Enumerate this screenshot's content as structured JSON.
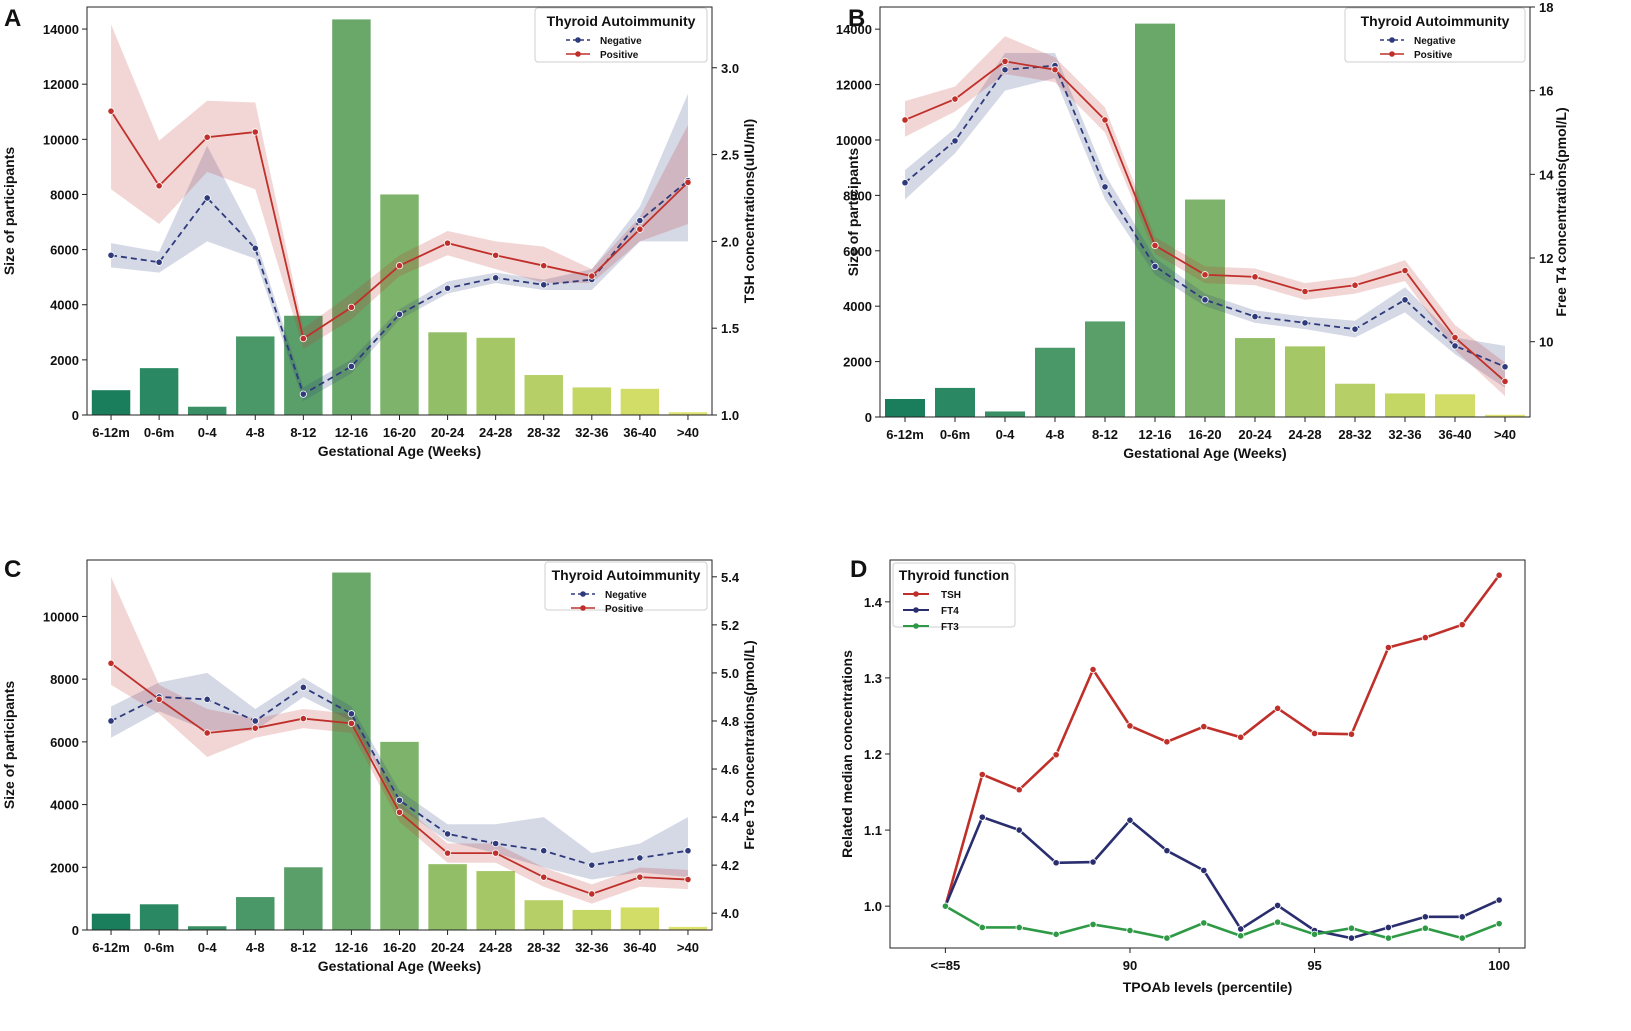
{
  "chart_data": [
    {
      "panel": "A",
      "type": "bar+line",
      "xlabel": "Gestational Age (Weeks)",
      "ylabel_left": "Size of participants",
      "ylabel_right": "TSH concentrations(uIU/ml)",
      "ylim_left": [
        0,
        14800
      ],
      "yticks_left": [
        0,
        2000,
        4000,
        6000,
        8000,
        10000,
        12000,
        14000
      ],
      "ylim_right": [
        1.0,
        3.35
      ],
      "yticks_right": [
        "1.0",
        "1.5",
        "2.0",
        "2.5",
        "3.0"
      ],
      "yticks_right_values": [
        1.0,
        1.5,
        2.0,
        2.5,
        3.0
      ],
      "categories": [
        "6-12m",
        "0-6m",
        "0-4",
        "4-8",
        "8-12",
        "12-16",
        "16-20",
        "20-24",
        "24-28",
        "28-32",
        "32-36",
        "36-40",
        ">40"
      ],
      "bars": [
        900,
        1700,
        300,
        2850,
        3600,
        14350,
        8000,
        3000,
        2800,
        1450,
        1000,
        950,
        100
      ],
      "legend_title": "Thyroid Autoimmunity",
      "series": [
        {
          "name": "Negative",
          "style": "dashed",
          "color": "#2e3a7c",
          "values": [
            1.92,
            1.88,
            2.25,
            1.96,
            1.12,
            1.28,
            1.58,
            1.73,
            1.79,
            1.75,
            1.78,
            2.12,
            2.35
          ],
          "ci_low": [
            1.85,
            1.82,
            2.0,
            1.9,
            1.08,
            1.24,
            1.55,
            1.7,
            1.76,
            1.72,
            1.72,
            2.0,
            2.0
          ],
          "ci_high": [
            1.99,
            1.94,
            2.55,
            2.02,
            1.16,
            1.32,
            1.61,
            1.77,
            1.82,
            1.78,
            1.84,
            2.2,
            2.85
          ]
        },
        {
          "name": "Positive",
          "style": "solid",
          "color": "#c0302b",
          "values": [
            2.75,
            2.32,
            2.6,
            2.63,
            1.44,
            1.62,
            1.86,
            1.99,
            1.92,
            1.86,
            1.8,
            2.07,
            2.34
          ],
          "ci_low": [
            2.3,
            2.1,
            2.4,
            2.3,
            1.38,
            1.55,
            1.8,
            1.92,
            1.84,
            1.76,
            1.76,
            2.0,
            2.1
          ],
          "ci_high": [
            3.25,
            2.58,
            2.81,
            2.8,
            1.5,
            1.7,
            1.92,
            2.06,
            2.0,
            1.97,
            1.84,
            2.14,
            2.67
          ]
        }
      ]
    },
    {
      "panel": "B",
      "type": "bar+line",
      "xlabel": "Gestational Age (Weeks)",
      "ylabel_left": "Size of participants",
      "ylabel_right": "Free T4 concentrations(pmol/L)",
      "ylim_left": [
        0,
        14800
      ],
      "yticks_left": [
        0,
        2000,
        4000,
        6000,
        8000,
        10000,
        12000,
        14000
      ],
      "ylim_right": [
        8.2,
        18.0
      ],
      "yticks_right": [
        "10",
        "12",
        "14",
        "16",
        "18"
      ],
      "yticks_right_values": [
        10,
        12,
        14,
        16,
        18
      ],
      "categories": [
        "6-12m",
        "0-6m",
        "0-4",
        "4-8",
        "8-12",
        "12-16",
        "16-20",
        "20-24",
        "24-28",
        "28-32",
        "32-36",
        "36-40",
        ">40"
      ],
      "bars": [
        650,
        1050,
        200,
        2500,
        3450,
        14200,
        7850,
        2850,
        2550,
        1200,
        850,
        820,
        80
      ],
      "legend_title": "Thyroid Autoimmunity",
      "series": [
        {
          "name": "Negative",
          "style": "dashed",
          "color": "#2e3a7c",
          "values": [
            13.8,
            14.8,
            16.5,
            16.6,
            13.7,
            11.8,
            11.0,
            10.6,
            10.45,
            10.3,
            11.0,
            9.9,
            9.4
          ],
          "ci_low": [
            13.4,
            14.5,
            16.0,
            16.3,
            13.4,
            11.6,
            10.85,
            10.45,
            10.3,
            10.1,
            10.7,
            9.7,
            8.9
          ],
          "ci_high": [
            14.1,
            15.1,
            16.9,
            16.9,
            14.0,
            12.0,
            11.15,
            10.75,
            10.6,
            10.5,
            11.3,
            10.1,
            9.9
          ]
        },
        {
          "name": "Positive",
          "style": "solid",
          "color": "#c0302b",
          "values": [
            15.3,
            15.8,
            16.7,
            16.5,
            15.3,
            12.3,
            11.6,
            11.55,
            11.2,
            11.35,
            11.7,
            10.1,
            9.05
          ],
          "ci_low": [
            14.9,
            15.5,
            16.4,
            16.2,
            15.0,
            12.1,
            11.4,
            11.35,
            11.0,
            11.15,
            11.45,
            9.8,
            8.7
          ],
          "ci_high": [
            15.75,
            16.1,
            17.3,
            16.8,
            15.6,
            12.5,
            11.8,
            11.75,
            11.4,
            11.55,
            11.95,
            10.4,
            9.5
          ]
        }
      ]
    },
    {
      "panel": "C",
      "type": "bar+line",
      "xlabel": "Gestational Age (Weeks)",
      "ylabel_left": "Size of participants",
      "ylabel_right": "Free T3 concentrations(pmol/L)",
      "ylim_left": [
        0,
        11800
      ],
      "yticks_left": [
        0,
        2000,
        4000,
        6000,
        8000,
        10000
      ],
      "ylim_right": [
        3.93,
        5.47
      ],
      "yticks_right": [
        "4.0",
        "4.2",
        "4.4",
        "4.6",
        "4.8",
        "5.0",
        "5.2",
        "5.4"
      ],
      "yticks_right_values": [
        4.0,
        4.2,
        4.4,
        4.6,
        4.8,
        5.0,
        5.2,
        5.4
      ],
      "categories": [
        "6-12m",
        "0-6m",
        "0-4",
        "4-8",
        "8-12",
        "12-16",
        "16-20",
        "20-24",
        "24-28",
        "28-32",
        "32-36",
        "36-40",
        ">40"
      ],
      "bars": [
        520,
        820,
        120,
        1050,
        2000,
        11400,
        6000,
        2100,
        1880,
        950,
        640,
        720,
        100
      ],
      "legend_title": "Thyroid Autoimmunity",
      "series": [
        {
          "name": "Negative",
          "style": "dashed",
          "color": "#2e3a7c",
          "values": [
            4.8,
            4.9,
            4.89,
            4.8,
            4.94,
            4.83,
            4.47,
            4.33,
            4.29,
            4.26,
            4.2,
            4.23,
            4.26
          ],
          "ci_low": [
            4.73,
            4.84,
            4.76,
            4.76,
            4.9,
            4.8,
            4.44,
            4.3,
            4.25,
            4.19,
            4.14,
            4.17,
            4.15
          ],
          "ci_high": [
            4.86,
            4.96,
            5.0,
            4.85,
            4.98,
            4.86,
            4.51,
            4.37,
            4.37,
            4.4,
            4.25,
            4.29,
            4.4
          ]
        },
        {
          "name": "Positive",
          "style": "solid",
          "color": "#c0302b",
          "values": [
            5.04,
            4.89,
            4.75,
            4.77,
            4.81,
            4.79,
            4.42,
            4.25,
            4.25,
            4.15,
            4.08,
            4.15,
            4.14
          ],
          "ci_low": [
            4.95,
            4.83,
            4.65,
            4.73,
            4.77,
            4.75,
            4.38,
            4.21,
            4.21,
            4.11,
            4.04,
            4.11,
            4.1
          ],
          "ci_high": [
            5.4,
            4.95,
            4.85,
            4.81,
            4.85,
            4.83,
            4.46,
            4.29,
            4.29,
            4.19,
            4.12,
            4.19,
            4.18
          ]
        }
      ]
    },
    {
      "panel": "D",
      "type": "line",
      "xlabel": "TPOAb levels (percentile)",
      "ylabel": "Related median concentrations",
      "xlim": [
        83.5,
        100.7
      ],
      "xticks": [
        "<=85",
        "90",
        "95",
        "100"
      ],
      "xticks_values": [
        85,
        90,
        95,
        100
      ],
      "ylim": [
        0.945,
        1.455
      ],
      "yticks": [
        "1.0",
        "1.1",
        "1.2",
        "1.3",
        "1.4"
      ],
      "yticks_values": [
        1.0,
        1.1,
        1.2,
        1.3,
        1.4
      ],
      "x": [
        85,
        86,
        87,
        88,
        89,
        90,
        91,
        92,
        93,
        94,
        95,
        96,
        97,
        98,
        99,
        100
      ],
      "legend_title": "Thyroid function",
      "series": [
        {
          "name": "TSH",
          "color": "#c0302b",
          "values": [
            1.0,
            1.173,
            1.153,
            1.199,
            1.311,
            1.237,
            1.216,
            1.236,
            1.222,
            1.26,
            1.227,
            1.226,
            1.34,
            1.353,
            1.37,
            1.435
          ]
        },
        {
          "name": "FT4",
          "color": "#2a2e6e",
          "values": [
            1.0,
            1.117,
            1.1,
            1.057,
            1.058,
            1.113,
            1.073,
            1.047,
            0.97,
            1.001,
            0.968,
            0.958,
            0.972,
            0.986,
            0.986,
            1.008
          ]
        },
        {
          "name": "FT3",
          "color": "#2e9a46",
          "values": [
            1.0,
            0.972,
            0.972,
            0.963,
            0.976,
            0.968,
            0.958,
            0.978,
            0.961,
            0.979,
            0.963,
            0.971,
            0.958,
            0.971,
            0.958,
            0.977
          ]
        }
      ]
    }
  ]
}
